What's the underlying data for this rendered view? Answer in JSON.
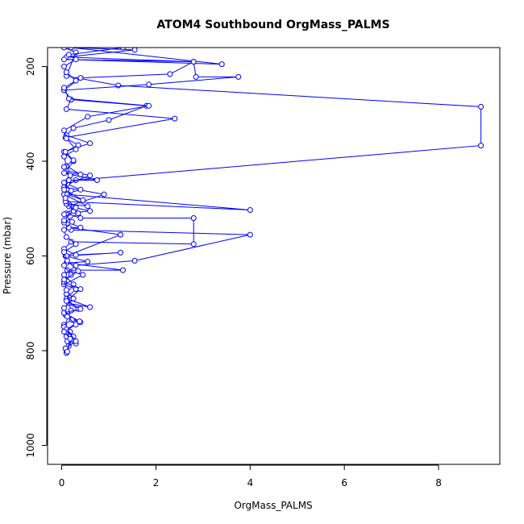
{
  "chart_data": {
    "type": "line",
    "title": "ATOM4 Southbound OrgMass_PALMS",
    "xlabel": "OrgMass_PALMS",
    "ylabel": "Pressure (mbar)",
    "xlim": [
      -0.3,
      9.3
    ],
    "ylim": [
      1040,
      160
    ],
    "y_reversed": true,
    "x_ticks": [
      0,
      2,
      4,
      6,
      8
    ],
    "x_tick_labels": [
      "0",
      "2",
      "4",
      "6",
      "8"
    ],
    "y_ticks": [
      200,
      400,
      600,
      800,
      1000
    ],
    "y_tick_labels": [
      "200",
      "400",
      "600",
      "800",
      "1000"
    ],
    "grid": false,
    "legend": "none",
    "colors": {
      "series": "#0000ff",
      "axis": "#000000"
    },
    "series": [
      {
        "points": [
          [
            0.1,
            805
          ],
          [
            0.15,
            790
          ],
          [
            0.12,
            780
          ],
          [
            0.3,
            785
          ],
          [
            0.1,
            770
          ],
          [
            0.18,
            760
          ],
          [
            0.05,
            745
          ],
          [
            0.22,
            735
          ],
          [
            0.4,
            740
          ],
          [
            0.08,
            725
          ],
          [
            0.35,
            712
          ],
          [
            0.15,
            700
          ],
          [
            0.6,
            708
          ],
          [
            0.1,
            690
          ],
          [
            0.3,
            670
          ],
          [
            0.05,
            660
          ],
          [
            0.45,
            640
          ],
          [
            0.12,
            630
          ],
          [
            1.3,
            630
          ],
          [
            0.1,
            615
          ],
          [
            0.55,
            612
          ],
          [
            0.08,
            600
          ],
          [
            1.25,
            593
          ],
          [
            0.3,
            598
          ],
          [
            0.05,
            585
          ],
          [
            0.2,
            570
          ],
          [
            2.8,
            575
          ],
          [
            2.8,
            520
          ],
          [
            0.4,
            520
          ],
          [
            0.1,
            510
          ],
          [
            0.6,
            505
          ],
          [
            0.15,
            495
          ],
          [
            0.9,
            470
          ],
          [
            0.05,
            455
          ],
          [
            0.3,
            440
          ],
          [
            8.9,
            367
          ],
          [
            8.9,
            285
          ],
          [
            1.2,
            240
          ],
          [
            0.1,
            220
          ],
          [
            0.3,
            170
          ],
          [
            0.05,
            160
          ]
        ]
      },
      {
        "points": [
          [
            0.1,
            800
          ],
          [
            0.25,
            770
          ],
          [
            0.05,
            750
          ],
          [
            0.2,
            715
          ],
          [
            0.1,
            680
          ],
          [
            0.25,
            660
          ],
          [
            0.05,
            640
          ],
          [
            0.3,
            620
          ],
          [
            1.55,
            610
          ],
          [
            4.0,
            555
          ],
          [
            0.2,
            545
          ],
          [
            0.05,
            530
          ],
          [
            0.35,
            510
          ],
          [
            0.1,
            490
          ],
          [
            0.55,
            495
          ],
          [
            0.05,
            470
          ],
          [
            0.4,
            460
          ],
          [
            0.12,
            448
          ],
          [
            0.6,
            430
          ],
          [
            0.1,
            420
          ],
          [
            0.25,
            400
          ],
          [
            0.05,
            380
          ],
          [
            0.6,
            362
          ],
          [
            0.1,
            345
          ],
          [
            0.25,
            330
          ],
          [
            1.0,
            313
          ],
          [
            1.8,
            283
          ],
          [
            0.2,
            270
          ],
          [
            0.05,
            250
          ],
          [
            0.4,
            224
          ],
          [
            2.3,
            216
          ],
          [
            2.8,
            190
          ],
          [
            0.1,
            180
          ],
          [
            1.55,
            165
          ],
          [
            0.2,
            160
          ]
        ]
      },
      {
        "points": [
          [
            0.08,
            795
          ],
          [
            0.3,
            780
          ],
          [
            0.1,
            755
          ],
          [
            0.38,
            738
          ],
          [
            0.05,
            720
          ],
          [
            0.4,
            712
          ],
          [
            0.1,
            695
          ],
          [
            0.4,
            670
          ],
          [
            0.05,
            655
          ],
          [
            0.2,
            640
          ],
          [
            0.05,
            620
          ],
          [
            0.1,
            600
          ],
          [
            1.25,
            555
          ],
          [
            0.15,
            540
          ],
          [
            0.4,
            540
          ],
          [
            0.05,
            525
          ],
          [
            0.25,
            505
          ],
          [
            0.08,
            485
          ],
          [
            4.0,
            503
          ],
          [
            0.12,
            470
          ],
          [
            0.45,
            482
          ],
          [
            0.05,
            460
          ],
          [
            0.15,
            440
          ],
          [
            0.75,
            440
          ],
          [
            0.05,
            425
          ],
          [
            0.4,
            428
          ],
          [
            0.1,
            410
          ],
          [
            0.05,
            390
          ],
          [
            0.3,
            375
          ],
          [
            0.08,
            350
          ],
          [
            2.4,
            310
          ],
          [
            0.1,
            290
          ],
          [
            0.2,
            270
          ],
          [
            0.05,
            250
          ],
          [
            1.85,
            238
          ],
          [
            3.75,
            222
          ],
          [
            2.85,
            222
          ],
          [
            2.8,
            190
          ],
          [
            0.05,
            185
          ],
          [
            3.4,
            195
          ],
          [
            0.2,
            160
          ]
        ]
      },
      {
        "points": [
          [
            0.12,
            802
          ],
          [
            0.18,
            775
          ],
          [
            0.05,
            760
          ],
          [
            0.3,
            745
          ],
          [
            0.12,
            728
          ],
          [
            0.05,
            710
          ],
          [
            0.25,
            690
          ],
          [
            0.1,
            672
          ],
          [
            0.05,
            650
          ],
          [
            0.35,
            632
          ],
          [
            0.12,
            610
          ],
          [
            0.05,
            592
          ],
          [
            0.3,
            575
          ],
          [
            0.1,
            560
          ],
          [
            0.05,
            545
          ],
          [
            0.22,
            528
          ],
          [
            0.05,
            512
          ],
          [
            0.3,
            498
          ],
          [
            0.08,
            478
          ],
          [
            0.2,
            462
          ],
          [
            0.05,
            445
          ],
          [
            0.18,
            430
          ],
          [
            0.05,
            412
          ],
          [
            0.25,
            398
          ],
          [
            0.08,
            380
          ],
          [
            0.35,
            366
          ],
          [
            0.1,
            352
          ],
          [
            0.05,
            335
          ],
          [
            0.55,
            306
          ],
          [
            1.85,
            283
          ],
          [
            0.15,
            268
          ],
          [
            0.05,
            245
          ],
          [
            0.3,
            230
          ],
          [
            0.1,
            212
          ],
          [
            0.05,
            200
          ],
          [
            0.3,
            185
          ],
          [
            0.15,
            175
          ],
          [
            1.3,
            160
          ]
        ]
      }
    ]
  }
}
